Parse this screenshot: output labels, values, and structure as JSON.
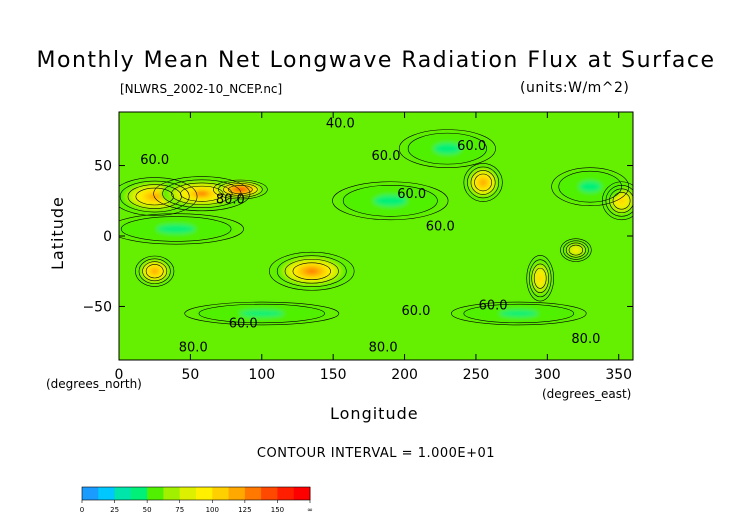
{
  "chart_data": {
    "type": "heatmap",
    "title": "Monthly Mean Net Longwave Radiation Flux at Surface",
    "file_label": "[NLWRS_2002-10_NCEP.nc]",
    "units_label": "(units:W/m^2)",
    "xlabel": "Longitude",
    "ylabel": "Latitude",
    "x_units": "(degrees_east)",
    "y_units": "(degrees_north)",
    "xlim": [
      0,
      360
    ],
    "ylim": [
      -88,
      88
    ],
    "x_ticks": [
      0,
      50,
      100,
      150,
      200,
      250,
      300,
      350
    ],
    "y_ticks": [
      50,
      0,
      -50
    ],
    "contour_interval_text": "CONTOUR INTERVAL = 1.000E+01",
    "contour_labels": [
      {
        "text": "40.0",
        "lon": 155,
        "lat": 77
      },
      {
        "text": "60.0",
        "lon": 25,
        "lat": 51
      },
      {
        "text": "60.0",
        "lon": 187,
        "lat": 54
      },
      {
        "text": "60.0",
        "lon": 247,
        "lat": 61
      },
      {
        "text": "60.0",
        "lon": 205,
        "lat": 27
      },
      {
        "text": "60.0",
        "lon": 225,
        "lat": 4
      },
      {
        "text": "80.0",
        "lon": 78,
        "lat": 23
      },
      {
        "text": "60.0",
        "lon": 208,
        "lat": -56
      },
      {
        "text": "60.0",
        "lon": 262,
        "lat": -52
      },
      {
        "text": "60.0",
        "lon": 87,
        "lat": -65
      },
      {
        "text": "80.0",
        "lon": 52,
        "lat": -82
      },
      {
        "text": "80.0",
        "lon": 185,
        "lat": -82
      },
      {
        "text": "80.0",
        "lon": 327,
        "lat": -76
      }
    ],
    "colorbar": {
      "labels": [
        "0",
        "25",
        "50",
        "75",
        "100",
        "125",
        "150",
        "∞"
      ],
      "colors": [
        "#1a9cff",
        "#00c8ff",
        "#00e6aa",
        "#00f078",
        "#50f000",
        "#a0f000",
        "#dcf000",
        "#fff000",
        "#ffd000",
        "#ffa800",
        "#ff7800",
        "#ff4800",
        "#ff1e00",
        "#ff0000"
      ]
    },
    "background_color": "#64f000",
    "features": [
      {
        "kind": "high",
        "lon": 25,
        "lat": 28,
        "rlon": 22,
        "rlat": 10,
        "value": 120
      },
      {
        "kind": "high",
        "lon": 58,
        "lat": 30,
        "rlon": 25,
        "rlat": 9,
        "value": 125
      },
      {
        "kind": "high",
        "lon": 85,
        "lat": 33,
        "rlon": 14,
        "rlat": 5,
        "value": 155
      },
      {
        "kind": "high",
        "lon": 135,
        "lat": -25,
        "rlon": 22,
        "rlat": 10,
        "value": 135
      },
      {
        "kind": "high",
        "lon": 25,
        "lat": -25,
        "rlon": 10,
        "rlat": 8,
        "value": 115
      },
      {
        "kind": "high",
        "lon": 255,
        "lat": 38,
        "rlon": 10,
        "rlat": 10,
        "value": 115
      },
      {
        "kind": "high",
        "lon": 295,
        "lat": -30,
        "rlon": 7,
        "rlat": 12,
        "value": 110
      },
      {
        "kind": "high",
        "lon": 352,
        "lat": 25,
        "rlon": 10,
        "rlat": 10,
        "value": 110
      },
      {
        "kind": "high",
        "lon": 320,
        "lat": -10,
        "rlon": 8,
        "rlat": 6,
        "value": 95
      },
      {
        "kind": "low",
        "lon": 190,
        "lat": 25,
        "rlon": 30,
        "rlat": 10,
        "value": 45
      },
      {
        "kind": "low",
        "lon": 230,
        "lat": 62,
        "rlon": 25,
        "rlat": 10,
        "value": 40
      },
      {
        "kind": "low",
        "lon": 40,
        "lat": 5,
        "rlon": 35,
        "rlat": 8,
        "value": 45
      },
      {
        "kind": "low",
        "lon": 330,
        "lat": 35,
        "rlon": 20,
        "rlat": 10,
        "value": 40
      },
      {
        "kind": "low",
        "lon": 100,
        "lat": -55,
        "rlon": 40,
        "rlat": 6,
        "value": 45
      },
      {
        "kind": "low",
        "lon": 280,
        "lat": -55,
        "rlon": 35,
        "rlat": 6,
        "value": 45
      }
    ]
  }
}
